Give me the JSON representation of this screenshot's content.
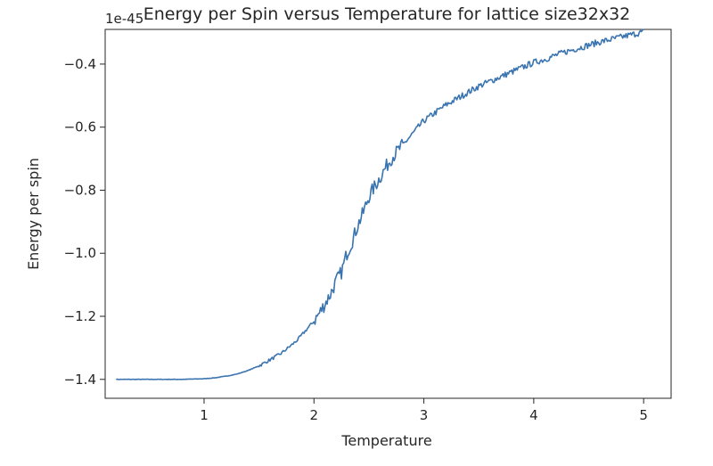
{
  "chart_data": {
    "type": "line",
    "title": "Energy per Spin versus Temperature for lattice size32x32",
    "xlabel": "Temperature",
    "ylabel": "Energy per spin",
    "y_offset_label": "1e-45",
    "xlim": [
      0.1,
      5.25
    ],
    "ylim": [
      -1.46,
      -0.29
    ],
    "xticks": [
      1,
      2,
      3,
      4,
      5
    ],
    "xtick_labels": [
      "1",
      "2",
      "3",
      "4",
      "5"
    ],
    "yticks": [
      -1.4,
      -1.2,
      -1.0,
      -0.8,
      -0.6,
      -0.4
    ],
    "ytick_labels": [
      "−1.4",
      "−1.2",
      "−1.0",
      "−0.8",
      "−0.6",
      "−0.4"
    ],
    "grid": false,
    "line_color": "#3a74b0",
    "series": [
      {
        "x": [
          0.2,
          0.4,
          0.6,
          0.8,
          1.0,
          1.1,
          1.2,
          1.3,
          1.4,
          1.5,
          1.6,
          1.7,
          1.8,
          1.85,
          1.9,
          1.95,
          2.0,
          2.05,
          2.1,
          2.15,
          2.2,
          2.25,
          2.3,
          2.35,
          2.4,
          2.45,
          2.5,
          2.55,
          2.6,
          2.65,
          2.7,
          2.75,
          2.8,
          2.85,
          2.9,
          3.0,
          3.1,
          3.2,
          3.3,
          3.4,
          3.5,
          3.6,
          3.7,
          3.8,
          3.9,
          4.0,
          4.1,
          4.2,
          4.3,
          4.4,
          4.5,
          4.6,
          4.7,
          4.8,
          4.9,
          5.0
        ],
        "y": [
          -1.4,
          -1.4,
          -1.4,
          -1.4,
          -1.398,
          -1.395,
          -1.39,
          -1.383,
          -1.372,
          -1.357,
          -1.338,
          -1.318,
          -1.29,
          -1.275,
          -1.255,
          -1.235,
          -1.215,
          -1.19,
          -1.16,
          -1.13,
          -1.09,
          -1.06,
          -1.0,
          -0.96,
          -0.91,
          -0.87,
          -0.82,
          -0.79,
          -0.76,
          -0.73,
          -0.7,
          -0.68,
          -0.66,
          -0.64,
          -0.62,
          -0.58,
          -0.555,
          -0.53,
          -0.51,
          -0.49,
          -0.47,
          -0.455,
          -0.44,
          -0.425,
          -0.41,
          -0.395,
          -0.385,
          -0.372,
          -0.36,
          -0.35,
          -0.34,
          -0.33,
          -0.322,
          -0.314,
          -0.306,
          -0.298
        ]
      }
    ]
  }
}
